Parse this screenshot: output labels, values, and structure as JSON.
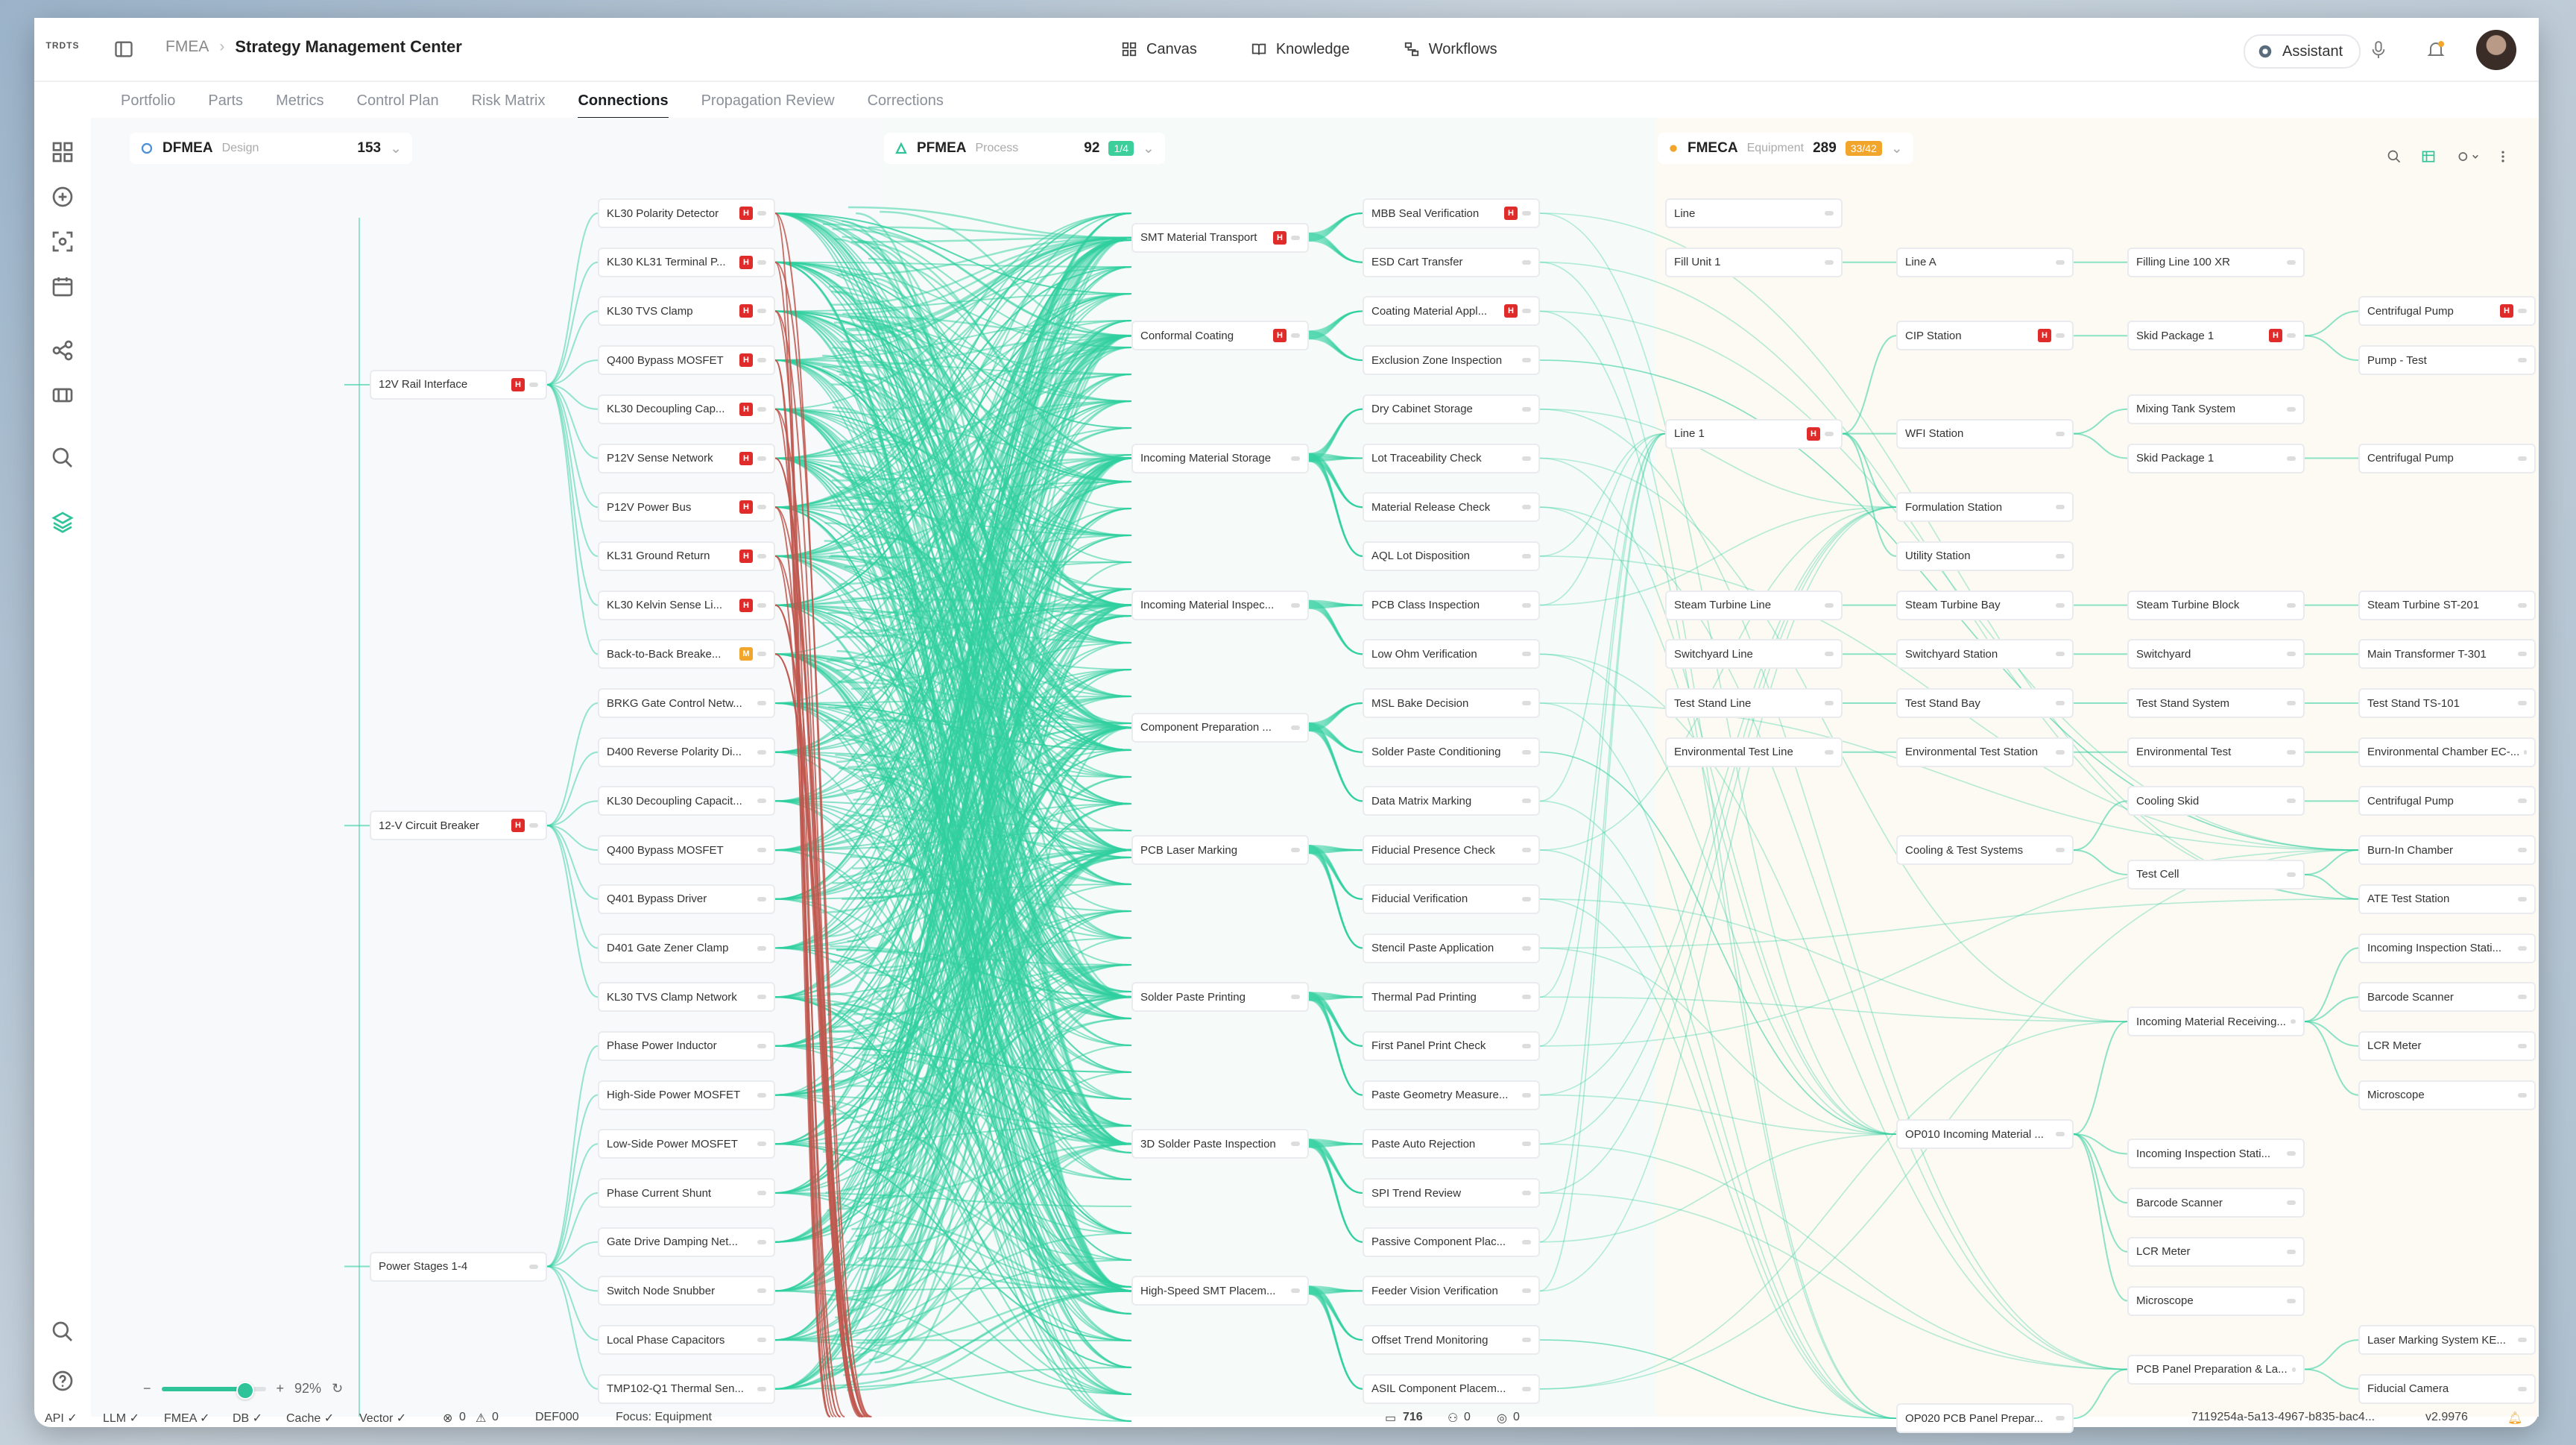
{
  "app": {
    "logo_text": "TRDTS"
  },
  "breadcrumb": {
    "parent": "FMEA",
    "current": "Strategy Management Center"
  },
  "topnav": [
    {
      "label": "Canvas",
      "icon": "grid-icon"
    },
    {
      "label": "Knowledge",
      "icon": "book-icon"
    },
    {
      "label": "Workflows",
      "icon": "workflow-icon"
    }
  ],
  "assistant": {
    "label": "Assistant"
  },
  "subtabs": [
    {
      "label": "Portfolio"
    },
    {
      "label": "Parts"
    },
    {
      "label": "Metrics"
    },
    {
      "label": "Control Plan"
    },
    {
      "label": "Risk Matrix"
    },
    {
      "label": "Connections",
      "active": true
    },
    {
      "label": "Propagation Review"
    },
    {
      "label": "Corrections"
    }
  ],
  "columns": {
    "dfmea": {
      "title": "DFMEA",
      "subtitle": "Design",
      "count": "153"
    },
    "pfmea": {
      "title": "PFMEA",
      "subtitle": "Process",
      "count": "92",
      "badge": "1/4"
    },
    "fmeca": {
      "title": "FMECA",
      "subtitle": "Equipment",
      "count": "289",
      "badge": "33/42"
    }
  },
  "colors": {
    "wire": "#2fcf9f",
    "wire_red": "#c0574e",
    "badge_red": "#e02b2b",
    "badge_orange": "#f2a52b",
    "badge_green": "#3ccf9a",
    "accent": "#2fc39a"
  },
  "dfmea_groups": [
    {
      "label": "12V Rail Interface",
      "badge": "H"
    },
    {
      "label": "12-V Circuit Breaker",
      "badge": "H"
    },
    {
      "label": "Power Stages 1-4",
      "badge": ""
    }
  ],
  "dfmea_items": [
    {
      "label": "KL30 Polarity Detector",
      "badge": "H"
    },
    {
      "label": "KL30 KL31 Terminal P...",
      "badge": "H"
    },
    {
      "label": "KL30 TVS Clamp",
      "badge": "H"
    },
    {
      "label": "Q400 Bypass MOSFET",
      "badge": "H"
    },
    {
      "label": "KL30 Decoupling Cap...",
      "badge": "H"
    },
    {
      "label": "P12V Sense Network",
      "badge": "H"
    },
    {
      "label": "P12V Power Bus",
      "badge": "H"
    },
    {
      "label": "KL31 Ground Return",
      "badge": "H"
    },
    {
      "label": "KL30 Kelvin Sense Li...",
      "badge": "H"
    },
    {
      "label": "Back-to-Back Breake...",
      "badge": "M"
    },
    {
      "label": "BRKG Gate Control Netw...",
      "badge": ""
    },
    {
      "label": "D400 Reverse Polarity Di...",
      "badge": ""
    },
    {
      "label": "KL30 Decoupling Capacit...",
      "badge": ""
    },
    {
      "label": "Q400 Bypass MOSFET",
      "badge": ""
    },
    {
      "label": "Q401 Bypass Driver",
      "badge": ""
    },
    {
      "label": "D401 Gate Zener Clamp",
      "badge": ""
    },
    {
      "label": "KL30 TVS Clamp Network",
      "badge": ""
    },
    {
      "label": "Phase Power Inductor",
      "badge": ""
    },
    {
      "label": "High-Side Power MOSFET",
      "badge": ""
    },
    {
      "label": "Low-Side Power MOSFET",
      "badge": ""
    },
    {
      "label": "Phase Current Shunt",
      "badge": ""
    },
    {
      "label": "Gate Drive Damping Net...",
      "badge": ""
    },
    {
      "label": "Switch Node Snubber",
      "badge": ""
    },
    {
      "label": "Local Phase Capacitors",
      "badge": ""
    },
    {
      "label": "TMP102-Q1 Thermal Sen...",
      "badge": ""
    }
  ],
  "pfmea_groups": [
    {
      "label": "SMT Material Transport",
      "badge": "H"
    },
    {
      "label": "Conformal Coating",
      "badge": "H"
    },
    {
      "label": "Incoming Material Storage",
      "badge": ""
    },
    {
      "label": "Incoming Material Inspec...",
      "badge": ""
    },
    {
      "label": "Component Preparation ...",
      "badge": ""
    },
    {
      "label": "PCB Laser Marking",
      "badge": ""
    },
    {
      "label": "Solder Paste Printing",
      "badge": ""
    },
    {
      "label": "3D Solder Paste Inspection",
      "badge": ""
    },
    {
      "label": "High-Speed SMT Placem...",
      "badge": ""
    }
  ],
  "pfmea_items": [
    {
      "label": "MBB Seal Verification",
      "badge": "H"
    },
    {
      "label": "ESD Cart Transfer",
      "badge": ""
    },
    {
      "label": "Coating Material Appl...",
      "badge": "H"
    },
    {
      "label": "Exclusion Zone Inspection",
      "badge": ""
    },
    {
      "label": "Dry Cabinet Storage",
      "badge": ""
    },
    {
      "label": "Lot Traceability Check",
      "badge": ""
    },
    {
      "label": "Material Release Check",
      "badge": ""
    },
    {
      "label": "AQL Lot Disposition",
      "badge": ""
    },
    {
      "label": "PCB Class Inspection",
      "badge": ""
    },
    {
      "label": "Low Ohm Verification",
      "badge": ""
    },
    {
      "label": "MSL Bake Decision",
      "badge": ""
    },
    {
      "label": "Solder Paste Conditioning",
      "badge": ""
    },
    {
      "label": "Data Matrix Marking",
      "badge": ""
    },
    {
      "label": "Fiducial Presence Check",
      "badge": ""
    },
    {
      "label": "Fiducial Verification",
      "badge": ""
    },
    {
      "label": "Stencil Paste Application",
      "badge": ""
    },
    {
      "label": "Thermal Pad Printing",
      "badge": ""
    },
    {
      "label": "First Panel Print Check",
      "badge": ""
    },
    {
      "label": "Paste Geometry Measure...",
      "badge": ""
    },
    {
      "label": "Paste Auto Rejection",
      "badge": ""
    },
    {
      "label": "SPI Trend Review",
      "badge": ""
    },
    {
      "label": "Passive Component Plac...",
      "badge": ""
    },
    {
      "label": "Feeder Vision Verification",
      "badge": ""
    },
    {
      "label": "Offset Trend Monitoring",
      "badge": ""
    },
    {
      "label": "ASIL Component Placem...",
      "badge": ""
    }
  ],
  "fmeca_c1": [
    {
      "label": "Line",
      "badge": ""
    },
    {
      "label": "Fill Unit 1",
      "badge": ""
    },
    {
      "label": "Line 1",
      "badge": "H"
    },
    {
      "label": "Steam Turbine Line",
      "badge": ""
    },
    {
      "label": "Switchyard Line",
      "badge": ""
    },
    {
      "label": "Test Stand Line",
      "badge": ""
    },
    {
      "label": "Environmental Test Line",
      "badge": ""
    }
  ],
  "fmeca_c2": [
    {
      "label": "Line A",
      "badge": ""
    },
    {
      "label": "CIP Station",
      "badge": "H"
    },
    {
      "label": "WFI Station",
      "badge": ""
    },
    {
      "label": "Formulation Station",
      "badge": ""
    },
    {
      "label": "Utility Station",
      "badge": ""
    },
    {
      "label": "Steam Turbine Bay",
      "badge": ""
    },
    {
      "label": "Switchyard Station",
      "badge": ""
    },
    {
      "label": "Test Stand Bay",
      "badge": ""
    },
    {
      "label": "Environmental Test Station",
      "badge": ""
    },
    {
      "label": "Cooling & Test Systems",
      "badge": ""
    },
    {
      "label": "OP010 Incoming Material ...",
      "badge": ""
    },
    {
      "label": "OP020 PCB Panel Prepar...",
      "badge": ""
    }
  ],
  "fmeca_c3": [
    {
      "label": "Filling Line 100 XR",
      "badge": ""
    },
    {
      "label": "Skid Package 1",
      "badge": "H"
    },
    {
      "label": "Mixing Tank System",
      "badge": ""
    },
    {
      "label": "Skid Package 1",
      "badge": ""
    },
    {
      "label": "Steam Turbine Block",
      "badge": ""
    },
    {
      "label": "Switchyard",
      "badge": ""
    },
    {
      "label": "Test Stand System",
      "badge": ""
    },
    {
      "label": "Environmental Test",
      "badge": ""
    },
    {
      "label": "Cooling Skid",
      "badge": ""
    },
    {
      "label": "Test Cell",
      "badge": ""
    },
    {
      "label": "Incoming Material Receiving...",
      "badge": ""
    },
    {
      "label": "Incoming Inspection Stati...",
      "badge": ""
    },
    {
      "label": "Barcode Scanner",
      "badge": ""
    },
    {
      "label": "LCR Meter",
      "badge": ""
    },
    {
      "label": "Microscope",
      "badge": ""
    },
    {
      "label": "PCB Panel Preparation & La...",
      "badge": ""
    }
  ],
  "fmeca_c4": [
    {
      "label": "Centrifugal Pump",
      "badge": "H"
    },
    {
      "label": "Pump - Test",
      "badge": ""
    },
    {
      "label": "Centrifugal Pump",
      "badge": ""
    },
    {
      "label": "Steam Turbine ST-201",
      "badge": ""
    },
    {
      "label": "Main Transformer T-301",
      "badge": ""
    },
    {
      "label": "Test Stand TS-101",
      "badge": ""
    },
    {
      "label": "Environmental Chamber EC-...",
      "badge": ""
    },
    {
      "label": "Centrifugal Pump",
      "badge": ""
    },
    {
      "label": "Burn-In Chamber",
      "badge": ""
    },
    {
      "label": "ATE Test Station",
      "badge": ""
    },
    {
      "label": "Incoming Inspection Stati...",
      "badge": ""
    },
    {
      "label": "Barcode Scanner",
      "badge": ""
    },
    {
      "label": "LCR Meter",
      "badge": ""
    },
    {
      "label": "Microscope",
      "badge": ""
    },
    {
      "label": "Laser Marking System KE...",
      "badge": ""
    },
    {
      "label": "Fiducial Camera",
      "badge": ""
    }
  ],
  "zoom": {
    "value": 0.92,
    "label": "92%"
  },
  "status": {
    "flags": [
      "API ✓",
      "LLM ✓",
      "FMEA ✓",
      "DB ✓",
      "Cache ✓",
      "Vector ✓"
    ],
    "errors": "0",
    "warnings": "0",
    "code": "DEF000",
    "focus": "Focus: Equipment",
    "files": "716",
    "users": "0",
    "pending": "0",
    "session": "7119254a-5a13-4967-b835-bac4...",
    "version": "v2.9976"
  }
}
